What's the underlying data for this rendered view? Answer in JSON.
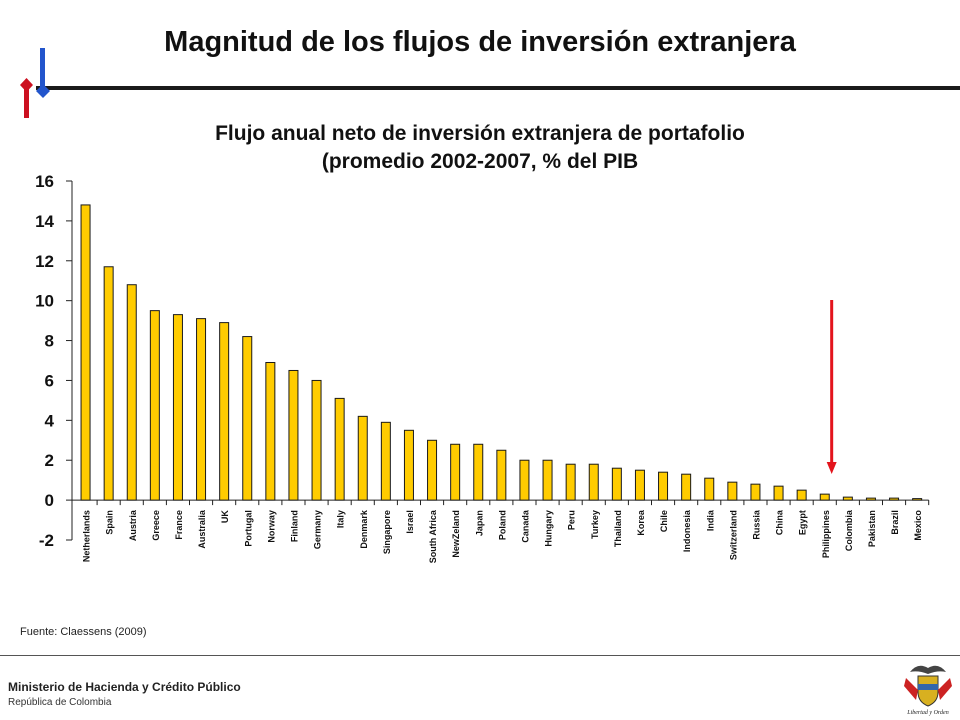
{
  "slide": {
    "title": "Magnitud de los flujos de inversión extranjera",
    "source": "Fuente: Claessens (2009)"
  },
  "footer": {
    "ministry": "Ministerio de Hacienda y Crédito Público",
    "republic": "República de Colombia",
    "crest_motto": "Libertad y Orden"
  },
  "colors": {
    "bar_fill": "#ffcc00",
    "bar_stroke": "#1a1a1a",
    "highlight_arrow": "#e3141c",
    "logo_red": "#cc1020",
    "logo_blue": "#2255cc"
  },
  "chart_data": {
    "type": "bar",
    "title_line1": "Flujo anual neto de inversión extranjera de portafolio",
    "title_line2": "(promedio 2002-2007, % del PIB",
    "categories": [
      "Netherlands",
      "Spain",
      "Austria",
      "Greece",
      "France",
      "Australia",
      "UK",
      "Portugal",
      "Norway",
      "Finland",
      "Germany",
      "Italy",
      "Denmark",
      "Singapore",
      "Israel",
      "South Africa",
      "NewZeland",
      "Japan",
      "Poland",
      "Canada",
      "Hungary",
      "Peru",
      "Turkey",
      "Thailand",
      "Korea",
      "Chile",
      "Indonesia",
      "India",
      "Switzerland",
      "Russia",
      "China",
      "Egypt",
      "Philippines",
      "Colombia",
      "Pakistan",
      "Brazil",
      "Mexico"
    ],
    "values": [
      14.8,
      11.7,
      10.8,
      9.5,
      9.3,
      9.1,
      8.9,
      8.2,
      6.9,
      6.5,
      6.0,
      5.1,
      4.2,
      3.9,
      3.5,
      3.0,
      2.8,
      2.8,
      2.5,
      2.0,
      2.0,
      1.8,
      1.8,
      1.6,
      1.5,
      1.4,
      1.3,
      1.1,
      0.9,
      0.8,
      0.7,
      0.5,
      0.3,
      0.15,
      0.1,
      0.1,
      0.05
    ],
    "ylim": [
      -2,
      16
    ],
    "yticks": [
      "16",
      "14",
      "12",
      "10",
      "8",
      "6",
      "4",
      "2",
      "0",
      "-2"
    ],
    "highlight": "Colombia",
    "grid": false,
    "legend": "none"
  }
}
